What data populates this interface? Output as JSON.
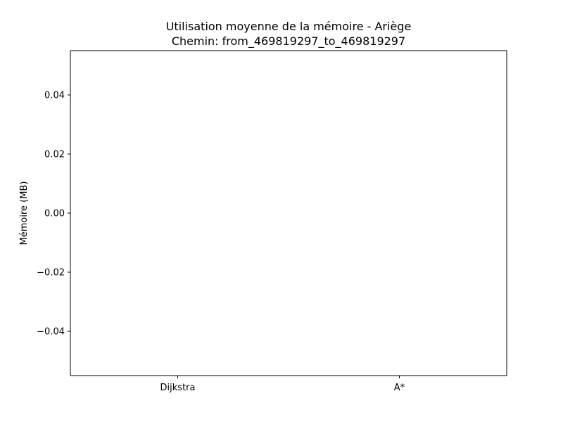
{
  "chart_data": {
    "type": "bar",
    "title": "Utilisation moyenne de la mémoire - Ariège",
    "subtitle": "Chemin: from_469819297_to_469819297",
    "xlabel": "",
    "ylabel": "Mémoire (MB)",
    "categories": [
      "Dijkstra",
      "A*"
    ],
    "values": [
      0,
      0
    ],
    "ylim": [
      -0.055,
      0.055
    ],
    "yticks": [
      {
        "value": 0.04,
        "label": "0.04"
      },
      {
        "value": 0.02,
        "label": "0.02"
      },
      {
        "value": 0.0,
        "label": "0.00"
      },
      {
        "value": -0.02,
        "label": "−0.02"
      },
      {
        "value": -0.04,
        "label": "−0.04"
      }
    ],
    "grid": false,
    "bar_color": "#1f77b4"
  }
}
